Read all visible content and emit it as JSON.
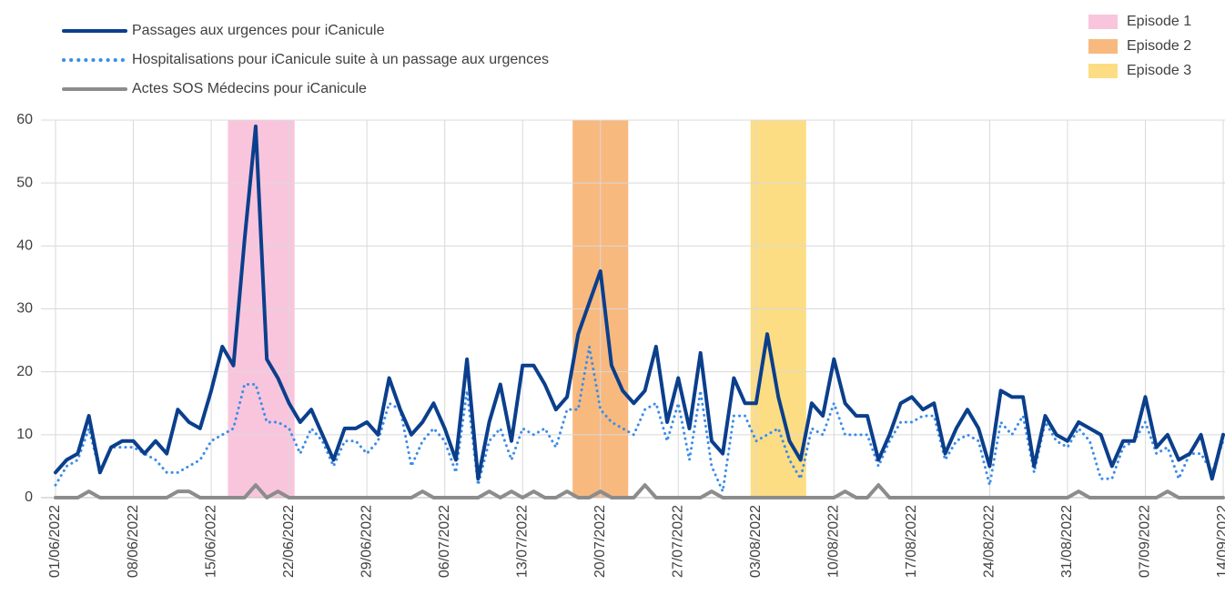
{
  "chart_data": {
    "type": "line",
    "x": [
      "01/06/2022",
      "02/06/2022",
      "03/06/2022",
      "04/06/2022",
      "05/06/2022",
      "06/06/2022",
      "07/06/2022",
      "08/06/2022",
      "09/06/2022",
      "10/06/2022",
      "11/06/2022",
      "12/06/2022",
      "13/06/2022",
      "14/06/2022",
      "15/06/2022",
      "16/06/2022",
      "17/06/2022",
      "18/06/2022",
      "19/06/2022",
      "20/06/2022",
      "21/06/2022",
      "22/06/2022",
      "23/06/2022",
      "24/06/2022",
      "25/06/2022",
      "26/06/2022",
      "27/06/2022",
      "28/06/2022",
      "29/06/2022",
      "30/06/2022",
      "01/07/2022",
      "02/07/2022",
      "03/07/2022",
      "04/07/2022",
      "05/07/2022",
      "06/07/2022",
      "07/07/2022",
      "08/07/2022",
      "09/07/2022",
      "10/07/2022",
      "11/07/2022",
      "12/07/2022",
      "13/07/2022",
      "14/07/2022",
      "15/07/2022",
      "16/07/2022",
      "17/07/2022",
      "18/07/2022",
      "19/07/2022",
      "20/07/2022",
      "21/07/2022",
      "22/07/2022",
      "23/07/2022",
      "24/07/2022",
      "25/07/2022",
      "26/07/2022",
      "27/07/2022",
      "28/07/2022",
      "29/07/2022",
      "30/07/2022",
      "31/07/2022",
      "01/08/2022",
      "02/08/2022",
      "03/08/2022",
      "04/08/2022",
      "05/08/2022",
      "06/08/2022",
      "07/08/2022",
      "08/08/2022",
      "09/08/2022",
      "10/08/2022",
      "11/08/2022",
      "12/08/2022",
      "13/08/2022",
      "14/08/2022",
      "15/08/2022",
      "16/08/2022",
      "17/08/2022",
      "18/08/2022",
      "19/08/2022",
      "20/08/2022",
      "21/08/2022",
      "22/08/2022",
      "23/08/2022",
      "24/08/2022",
      "25/08/2022",
      "26/08/2022",
      "27/08/2022",
      "28/08/2022",
      "29/08/2022",
      "30/08/2022",
      "31/08/2022",
      "01/09/2022",
      "02/09/2022",
      "03/09/2022",
      "04/09/2022",
      "05/09/2022",
      "06/09/2022",
      "07/09/2022",
      "08/09/2022",
      "09/09/2022",
      "10/09/2022",
      "11/09/2022",
      "12/09/2022",
      "13/09/2022",
      "14/09/2022"
    ],
    "series": [
      {
        "name": "Passages aux urgences pour iCanicule",
        "color": "#0b3f8c",
        "dash": "solid",
        "values": [
          4,
          6,
          7,
          13,
          4,
          8,
          9,
          9,
          7,
          9,
          7,
          14,
          12,
          11,
          17,
          24,
          21,
          41,
          59,
          22,
          19,
          15,
          12,
          14,
          10,
          6,
          11,
          11,
          12,
          10,
          19,
          14,
          10,
          12,
          15,
          11,
          6,
          22,
          3,
          12,
          18,
          9,
          21,
          21,
          18,
          14,
          16,
          26,
          31,
          36,
          21,
          17,
          15,
          17,
          24,
          12,
          19,
          11,
          23,
          9,
          7,
          19,
          15,
          15,
          26,
          16,
          9,
          6,
          15,
          13,
          22,
          15,
          13,
          13,
          6,
          10,
          15,
          16,
          14,
          15,
          7,
          11,
          14,
          11,
          5,
          17,
          16,
          16,
          5,
          13,
          10,
          9,
          12,
          11,
          10,
          5,
          9,
          9,
          16,
          8,
          10,
          6,
          7,
          10,
          3,
          10
        ]
      },
      {
        "name": "Hospitalisations pour iCanicule suite à un passage aux urgences",
        "color": "#3a8de8",
        "dash": "dotted",
        "values": [
          2,
          5,
          6,
          11,
          4,
          8,
          8,
          8,
          7,
          6,
          4,
          4,
          5,
          6,
          9,
          10,
          11,
          18,
          18,
          12,
          12,
          11,
          7,
          11,
          9,
          5,
          9,
          9,
          7,
          9,
          15,
          14,
          5,
          9,
          11,
          9,
          4,
          17,
          2,
          9,
          11,
          6,
          11,
          10,
          11,
          8,
          14,
          14,
          24,
          14,
          12,
          11,
          10,
          14,
          15,
          9,
          15,
          6,
          17,
          5,
          1,
          13,
          13,
          9,
          10,
          11,
          6,
          3,
          11,
          10,
          15,
          10,
          10,
          10,
          5,
          9,
          12,
          12,
          13,
          13,
          6,
          9,
          10,
          9,
          2,
          12,
          10,
          13,
          4,
          12,
          9,
          8,
          11,
          9,
          3,
          3,
          8,
          9,
          12,
          7,
          8,
          3,
          7,
          7,
          4,
          9
        ]
      },
      {
        "name": "Actes SOS Médecins pour iCanicule",
        "color": "#8c8c8c",
        "dash": "solid",
        "values": [
          0,
          0,
          0,
          1,
          0,
          0,
          0,
          0,
          0,
          0,
          0,
          1,
          1,
          0,
          0,
          0,
          0,
          0,
          2,
          0,
          1,
          0,
          0,
          0,
          0,
          0,
          0,
          0,
          0,
          0,
          0,
          0,
          0,
          1,
          0,
          0,
          0,
          0,
          0,
          1,
          0,
          1,
          0,
          1,
          0,
          0,
          1,
          0,
          0,
          1,
          0,
          0,
          0,
          2,
          0,
          0,
          0,
          0,
          0,
          1,
          0,
          0,
          0,
          0,
          0,
          0,
          0,
          0,
          0,
          0,
          0,
          1,
          0,
          0,
          2,
          0,
          0,
          0,
          0,
          0,
          0,
          0,
          0,
          0,
          0,
          0,
          0,
          0,
          0,
          0,
          0,
          0,
          1,
          0,
          0,
          0,
          0,
          0,
          0,
          0,
          1,
          0,
          0,
          0,
          0,
          0
        ]
      }
    ],
    "episodes": [
      {
        "name": "Episode 1",
        "color": "#f9c5dd",
        "start": "17/06/2022",
        "end": "22/06/2022"
      },
      {
        "name": "Episode 2",
        "color": "#f8b97f",
        "start": "18/07/2022",
        "end": "22/07/2022"
      },
      {
        "name": "Episode 3",
        "color": "#fddd84",
        "start": "03/08/2022",
        "end": "07/08/2022"
      }
    ],
    "ylim": [
      0,
      60
    ],
    "yticks": [
      0,
      10,
      20,
      30,
      40,
      50,
      60
    ],
    "xticks": [
      "01/06/2022",
      "08/06/2022",
      "15/06/2022",
      "22/06/2022",
      "29/06/2022",
      "06/07/2022",
      "13/07/2022",
      "20/07/2022",
      "27/07/2022",
      "03/08/2022",
      "10/08/2022",
      "17/08/2022",
      "24/08/2022",
      "31/08/2022",
      "07/09/2022",
      "14/09/2022"
    ],
    "grid": true
  }
}
